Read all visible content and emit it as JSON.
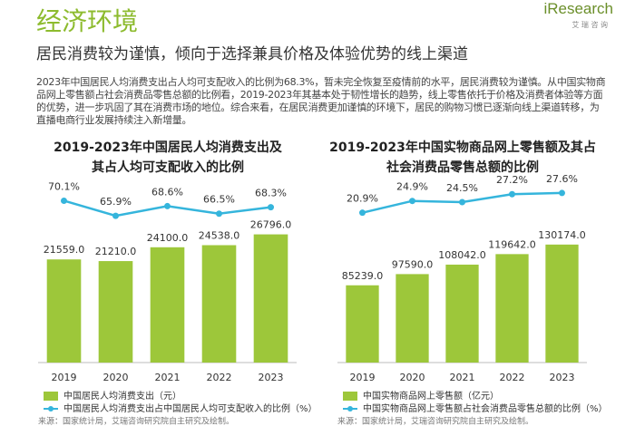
{
  "header": {
    "title": "经济环境",
    "logo": "iResearch",
    "logo_sub": "艾 瑞 咨 询",
    "subtitle": "居民消费较为谨慎，倾向于选择兼具价格及体验优势的线上渠道",
    "paragraph": "2023年中国居民人均消费支出占人均可支配收入的比例为68.3%，暂未完全恢复至疫情前的水平，居民消费较为谨慎。从中国实物商品网上零售额占社会消费品零售总额的比例看，2019-2023年其基本处于韧性增长的趋势，线上零售依托于价格及消费者体验等方面的优势，进一步巩固了其在消费市场的地位。综合来看，在居民消费更加谨慎的环境下，居民的购物习惯已逐渐向线上渠道转移，为直播电商行业发展持续注入新增量。"
  },
  "chart_data": [
    {
      "type": "combo",
      "title": [
        "2019-2023年中国居民人均消费支出及",
        "其占人均可支配收入的比例"
      ],
      "categories": [
        "2019",
        "2020",
        "2021",
        "2022",
        "2023"
      ],
      "ylim": [
        0,
        36000
      ],
      "y2lim": [
        25,
        73
      ],
      "series": [
        {
          "name": "中国居民人均消费支出（元）",
          "type": "bar",
          "color": "#9dc73a",
          "values": [
            21559.0,
            21210.0,
            24100.0,
            24538.0,
            26796.0
          ],
          "value_labels": [
            "21559.0",
            "21210.0",
            "24100.0",
            "24538.0",
            "26796.0"
          ]
        },
        {
          "name": "中国居民人均消费支出占中国居民人均可支配收入的比例（%）",
          "type": "line",
          "axis": "y2",
          "color": "#35b5dc",
          "values": [
            70.1,
            65.9,
            68.6,
            66.5,
            68.3
          ],
          "value_labels": [
            "70.1%",
            "65.9%",
            "68.6%",
            "66.5%",
            "68.3%"
          ]
        }
      ],
      "source": "来源：国家统计局，艾瑞咨询研究院自主研究及绘制。"
    },
    {
      "type": "combo",
      "title": [
        "2019-2023年中国实物商品网上零售额及其占",
        "社会消费品零售总额的比例"
      ],
      "categories": [
        "2019",
        "2020",
        "2021",
        "2022",
        "2023"
      ],
      "ylim": [
        0,
        190000
      ],
      "y2lim": [
        -30,
        28.5
      ],
      "series": [
        {
          "name": "中国实物商品网上零售额（亿元）",
          "type": "bar",
          "color": "#9dc73a",
          "values": [
            85239.0,
            97590.0,
            108042.0,
            119642.0,
            130174.0
          ],
          "value_labels": [
            "85239.0",
            "97590.0",
            "108042.0",
            "119642.0",
            "130174.0"
          ]
        },
        {
          "name": "中国实物商品网上零售额占社会消费品零售总额的比例（%）",
          "type": "line",
          "axis": "y2",
          "color": "#35b5dc",
          "values": [
            20.9,
            24.9,
            24.5,
            27.2,
            27.6
          ],
          "value_labels": [
            "20.9%",
            "24.9%",
            "24.5%",
            "27.2%",
            "27.6%"
          ]
        }
      ],
      "source": "来源：国家统计局，艾瑞咨询研究院自主研究及绘制。"
    }
  ]
}
